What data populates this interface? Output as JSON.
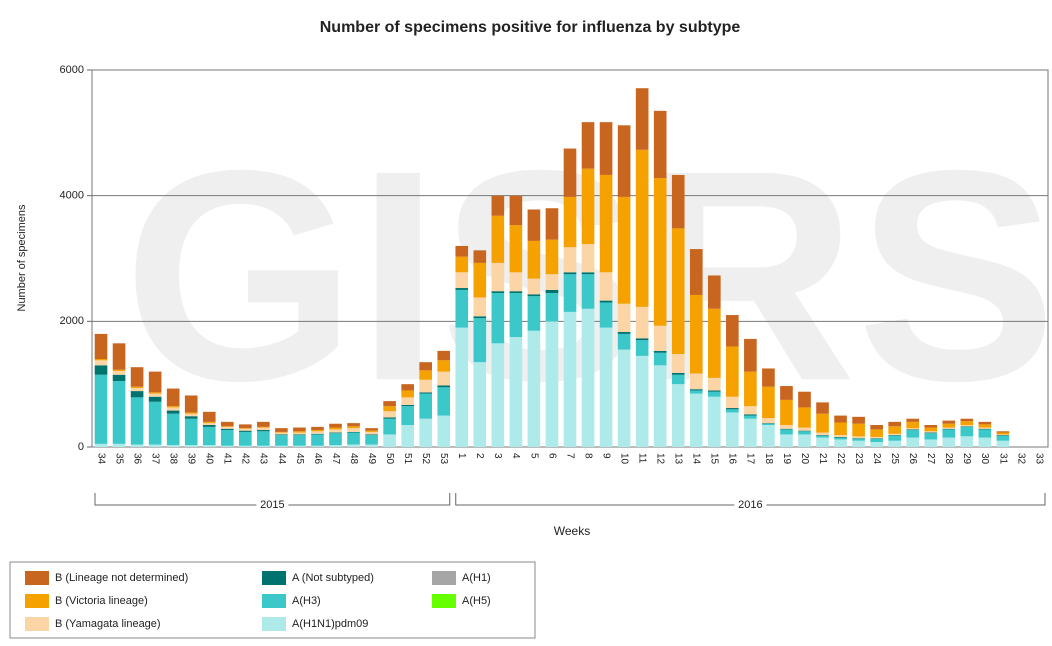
{
  "chart_data": {
    "type": "stacked-bar",
    "title": "Number of specimens positive for influenza by subtype",
    "watermark": "GISRS",
    "y_label": "Number of specimens",
    "x_label": "Weeks",
    "year_labels": [
      "2015",
      "2016"
    ],
    "categories": [
      "34",
      "35",
      "36",
      "37",
      "38",
      "39",
      "40",
      "41",
      "42",
      "43",
      "44",
      "45",
      "46",
      "47",
      "48",
      "49",
      "50",
      "51",
      "52",
      "53",
      "1",
      "2",
      "3",
      "4",
      "5",
      "6",
      "7",
      "8",
      "9",
      "10",
      "11",
      "12",
      "13",
      "14",
      "15",
      "16",
      "17",
      "18",
      "19",
      "20",
      "21",
      "22",
      "23",
      "24",
      "25",
      "26",
      "27",
      "28",
      "29",
      "30",
      "31",
      "32",
      "33"
    ],
    "ylim": [
      0,
      6000
    ],
    "yticks": [
      0,
      2000,
      4000,
      6000
    ],
    "grid": true,
    "series": [
      {
        "name": "A(H1N1)pdm09",
        "color": "#aeeaea",
        "values": [
          50,
          50,
          40,
          40,
          30,
          30,
          30,
          20,
          20,
          20,
          20,
          20,
          20,
          30,
          40,
          40,
          200,
          350,
          450,
          500,
          1900,
          1350,
          1650,
          1750,
          1850,
          2000,
          2150,
          2200,
          1900,
          1550,
          1450,
          1300,
          1000,
          850,
          800,
          550,
          450,
          350,
          200,
          200,
          150,
          120,
          100,
          80,
          100,
          150,
          120,
          150,
          170,
          150,
          100,
          0,
          0
        ]
      },
      {
        "name": "A(H3)",
        "color": "#3cc8c8",
        "values": [
          1100,
          1000,
          750,
          680,
          500,
          420,
          290,
          250,
          220,
          230,
          170,
          170,
          180,
          190,
          190,
          150,
          250,
          300,
          400,
          450,
          600,
          700,
          800,
          700,
          550,
          450,
          600,
          550,
          400,
          250,
          250,
          200,
          150,
          50,
          80,
          50,
          50,
          20,
          80,
          50,
          30,
          30,
          30,
          50,
          80,
          120,
          100,
          130,
          150,
          130,
          80,
          0,
          0
        ]
      },
      {
        "name": "A (Not subtyped)",
        "color": "#00736e",
        "values": [
          150,
          100,
          100,
          80,
          50,
          40,
          30,
          20,
          20,
          20,
          10,
          10,
          10,
          10,
          10,
          10,
          20,
          20,
          20,
          30,
          30,
          30,
          30,
          30,
          30,
          50,
          30,
          30,
          30,
          30,
          30,
          30,
          30,
          20,
          20,
          20,
          20,
          10,
          10,
          10,
          10,
          10,
          10,
          10,
          10,
          10,
          10,
          10,
          10,
          10,
          10,
          0,
          0
        ]
      },
      {
        "name": "A(H1)",
        "color": "#a6a6a6",
        "values": [
          0,
          0,
          0,
          0,
          0,
          0,
          0,
          0,
          0,
          0,
          0,
          0,
          0,
          0,
          0,
          0,
          0,
          0,
          0,
          0,
          0,
          0,
          0,
          0,
          0,
          0,
          0,
          0,
          0,
          0,
          0,
          0,
          0,
          0,
          0,
          0,
          0,
          0,
          0,
          0,
          0,
          0,
          0,
          0,
          0,
          0,
          0,
          0,
          0,
          0,
          0,
          0,
          0
        ]
      },
      {
        "name": "A(H5)",
        "color": "#66ff00",
        "values": [
          0,
          0,
          0,
          0,
          0,
          0,
          0,
          0,
          0,
          0,
          0,
          0,
          0,
          0,
          0,
          0,
          0,
          0,
          0,
          0,
          0,
          0,
          0,
          0,
          0,
          0,
          0,
          0,
          0,
          0,
          0,
          0,
          0,
          0,
          0,
          0,
          0,
          0,
          0,
          0,
          0,
          0,
          0,
          0,
          0,
          0,
          0,
          0,
          0,
          0,
          0,
          0,
          0
        ]
      },
      {
        "name": "B (Yamagata lineage)",
        "color": "#fbd5a5",
        "values": [
          80,
          60,
          50,
          50,
          50,
          40,
          30,
          30,
          30,
          40,
          30,
          30,
          40,
          50,
          60,
          40,
          100,
          120,
          200,
          220,
          250,
          300,
          450,
          300,
          250,
          250,
          400,
          450,
          450,
          450,
          500,
          400,
          300,
          250,
          200,
          180,
          130,
          80,
          60,
          50,
          40,
          30,
          30,
          20,
          20,
          20,
          20,
          20,
          20,
          20,
          10,
          0,
          0
        ]
      },
      {
        "name": "B (Victoria lineage)",
        "color": "#f5a100",
        "values": [
          20,
          20,
          20,
          20,
          20,
          20,
          20,
          10,
          10,
          10,
          10,
          20,
          20,
          30,
          30,
          20,
          80,
          110,
          150,
          180,
          250,
          550,
          750,
          750,
          600,
          550,
          800,
          1200,
          1550,
          1700,
          2500,
          2350,
          2000,
          1250,
          1100,
          800,
          550,
          500,
          400,
          320,
          300,
          200,
          200,
          120,
          120,
          100,
          60,
          60,
          60,
          50,
          30,
          0,
          0
        ]
      },
      {
        "name": "B (Lineage not determined)",
        "color": "#c8651e",
        "values": [
          400,
          420,
          310,
          330,
          280,
          270,
          160,
          70,
          60,
          80,
          60,
          60,
          50,
          60,
          50,
          40,
          80,
          100,
          130,
          150,
          170,
          200,
          320,
          470,
          500,
          500,
          770,
          740,
          840,
          1140,
          980,
          1070,
          850,
          730,
          530,
          500,
          520,
          290,
          220,
          250,
          180,
          110,
          110,
          70,
          70,
          50,
          40,
          50,
          40,
          40,
          20,
          0,
          0
        ]
      }
    ]
  }
}
